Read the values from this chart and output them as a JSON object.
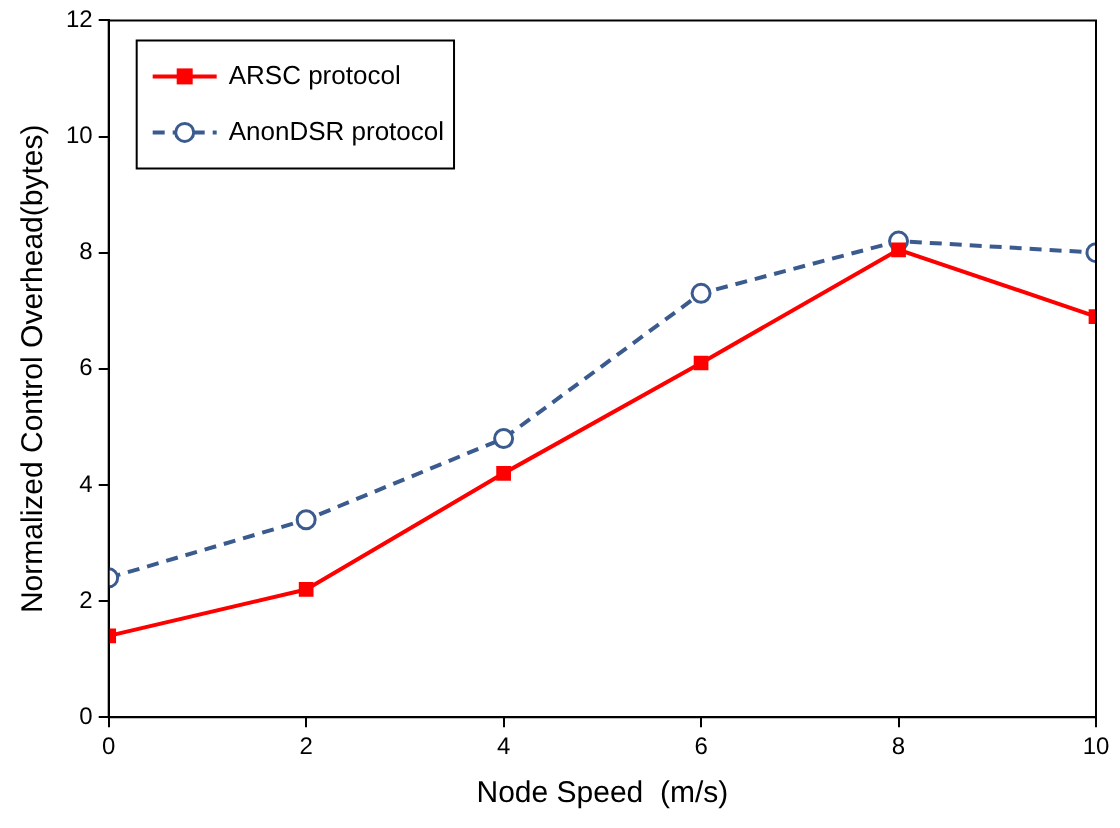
{
  "chart_data": {
    "type": "line",
    "xlabel": "Node Speed  (m/s)",
    "ylabel": "Normalized Control Overhead(bytes)",
    "x": [
      0,
      2,
      4,
      6,
      8,
      10
    ],
    "series": [
      {
        "name": "ARSC protocol",
        "color": "#ff0000",
        "marker": "square",
        "line_style": "solid",
        "values": [
          1.4,
          2.2,
          4.2,
          6.1,
          8.05,
          6.9
        ]
      },
      {
        "name": "AnonDSR protocol",
        "color": "#3b5b8f",
        "marker": "circle",
        "line_style": "dashed",
        "values": [
          2.4,
          3.4,
          4.8,
          7.3,
          8.2,
          8.0
        ]
      }
    ],
    "xlim": [
      0,
      10
    ],
    "xticks": [
      0,
      2,
      4,
      6,
      8,
      10
    ],
    "ylim": [
      0,
      12
    ],
    "yticks": [
      0,
      2,
      4,
      6,
      8,
      10,
      12
    ],
    "grid": false,
    "legend": "top left"
  }
}
